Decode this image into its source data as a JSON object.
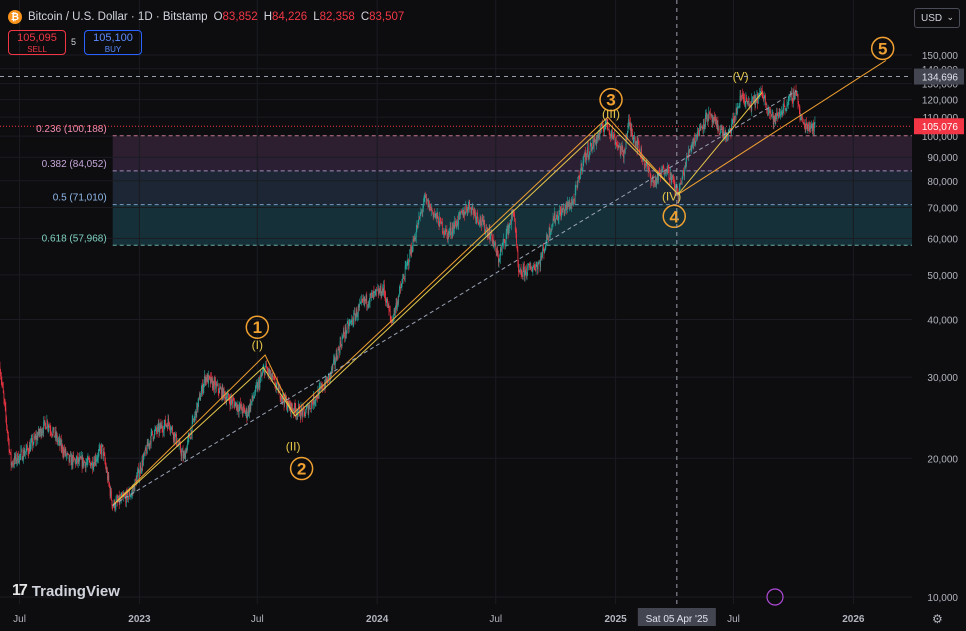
{
  "header": {
    "symbol_title": "Bitcoin / U.S. Dollar · 1D · Bitstamp",
    "open_label": "O",
    "open_value": "83,852",
    "high_label": "H",
    "high_value": "84,226",
    "low_label": "L",
    "low_value": "82,358",
    "close_label": "C",
    "close_value": "83,507"
  },
  "trade": {
    "sell_price": "105,095",
    "sell_label": "SELL",
    "spread": "5",
    "buy_price": "105,100",
    "buy_label": "BUY"
  },
  "currency": "USD",
  "brand": "TradingView",
  "colors": {
    "up": "#26a69a",
    "down": "#f23645",
    "wave": "#f0a030",
    "subwave": "#e6c84a",
    "background": "#0d0d10"
  },
  "chart_data": {
    "type": "candlestick",
    "ylim": [
      5000,
      160000
    ],
    "y_scale": "log",
    "y_ticks": [
      10000,
      20000,
      30000,
      40000,
      50000,
      60000,
      70000,
      80000,
      90000,
      100000,
      110000,
      120000,
      130000,
      140000,
      150000
    ],
    "y_tick_labels": [
      "10,000",
      "20,000",
      "30,000",
      "40,000",
      "50,000",
      "60,000",
      "70,000",
      "80,000",
      "90,000",
      "100,000",
      "110,000",
      "120,000",
      "130,000",
      "140,000",
      "150,000"
    ],
    "x_ticks": [
      {
        "date": "2022-07-01",
        "label": "Jul"
      },
      {
        "date": "2023-01-01",
        "label": "2023"
      },
      {
        "date": "2023-07-01",
        "label": "Jul"
      },
      {
        "date": "2024-01-01",
        "label": "2024"
      },
      {
        "date": "2024-07-01",
        "label": "Jul"
      },
      {
        "date": "2025-01-01",
        "label": "2025"
      },
      {
        "date": "2025-07-01",
        "label": "Jul"
      },
      {
        "date": "2026-01-01",
        "label": "2026"
      }
    ],
    "crosshair": {
      "date": "2025-04-05",
      "label": "Sat 05 Apr '25",
      "price": 134696,
      "price_label": "134,696"
    },
    "last_price": {
      "value": 105076,
      "label": "105,076"
    },
    "fib_levels": [
      {
        "ratio_label": "0.236 (100,188)",
        "value": 100188
      },
      {
        "ratio_label": "0.382 (84,052)",
        "value": 84052
      },
      {
        "ratio_label": "0.5 (71,010)",
        "value": 71010
      },
      {
        "ratio_label": "0.618 (57,968)",
        "value": 57968
      }
    ],
    "price_path": [
      [
        "2022-06-01",
        31500
      ],
      [
        "2022-06-18",
        19500
      ],
      [
        "2022-07-15",
        21000
      ],
      [
        "2022-08-12",
        24000
      ],
      [
        "2022-09-15",
        19800
      ],
      [
        "2022-10-20",
        19500
      ],
      [
        "2022-11-05",
        21000
      ],
      [
        "2022-11-21",
        15800
      ],
      [
        "2022-12-20",
        16800
      ],
      [
        "2023-01-20",
        22500
      ],
      [
        "2023-02-15",
        24000
      ],
      [
        "2023-03-10",
        20000
      ],
      [
        "2023-04-12",
        30000
      ],
      [
        "2023-05-20",
        26800
      ],
      [
        "2023-06-15",
        25000
      ],
      [
        "2023-07-13",
        31500
      ],
      [
        "2023-08-17",
        26000
      ],
      [
        "2023-09-11",
        25000
      ],
      [
        "2023-10-20",
        30000
      ],
      [
        "2023-11-10",
        37000
      ],
      [
        "2023-12-10",
        43500
      ],
      [
        "2024-01-11",
        46500
      ],
      [
        "2024-01-23",
        39500
      ],
      [
        "2024-02-15",
        52000
      ],
      [
        "2024-03-14",
        73000
      ],
      [
        "2024-04-18",
        61000
      ],
      [
        "2024-05-21",
        71000
      ],
      [
        "2024-06-25",
        60500
      ],
      [
        "2024-07-05",
        54000
      ],
      [
        "2024-07-29",
        69000
      ],
      [
        "2024-08-05",
        50000
      ],
      [
        "2024-09-06",
        53000
      ],
      [
        "2024-09-27",
        66000
      ],
      [
        "2024-10-29",
        72500
      ],
      [
        "2024-11-12",
        89000
      ],
      [
        "2024-12-05",
        100000
      ],
      [
        "2024-12-17",
        107000
      ],
      [
        "2025-01-13",
        91000
      ],
      [
        "2025-01-21",
        106500
      ],
      [
        "2025-02-28",
        79000
      ],
      [
        "2025-03-20",
        86000
      ],
      [
        "2025-04-07",
        74800
      ],
      [
        "2025-04-25",
        94500
      ],
      [
        "2025-05-22",
        111000
      ],
      [
        "2025-06-22",
        99000
      ],
      [
        "2025-07-14",
        123000
      ],
      [
        "2025-07-25",
        116000
      ],
      [
        "2025-08-14",
        124000
      ],
      [
        "2025-09-01",
        108000
      ],
      [
        "2025-10-06",
        125500
      ],
      [
        "2025-10-11",
        110000
      ],
      [
        "2025-10-17",
        106000
      ],
      [
        "2025-11-04",
        105076
      ]
    ],
    "wave_labels": [
      {
        "label": "1",
        "date": "2023-07-01",
        "value": 38500
      },
      {
        "label": "2",
        "date": "2023-09-07",
        "value": 19000
      },
      {
        "label": "3",
        "date": "2024-12-25",
        "value": 120000
      },
      {
        "label": "4",
        "date": "2025-04-01",
        "value": 67000
      },
      {
        "label": "5",
        "date": "2026-02-15",
        "value": 155000
      }
    ],
    "subwave_labels": [
      {
        "label": "(I)",
        "date": "2023-07-01",
        "value": 34500
      },
      {
        "label": "(II)",
        "date": "2023-08-25",
        "value": 20800
      },
      {
        "label": "(III)",
        "date": "2024-12-25",
        "value": 109500
      },
      {
        "label": "(IV)",
        "date": "2025-03-28",
        "value": 72500
      },
      {
        "label": "(V)",
        "date": "2025-07-12",
        "value": 132000
      }
    ],
    "wave_path_outer": [
      [
        "2022-11-21",
        15800
      ],
      [
        "2023-07-13",
        33500
      ],
      [
        "2023-08-25",
        25000
      ],
      [
        "2024-12-20",
        110000
      ],
      [
        "2025-04-07",
        74800
      ],
      [
        "2026-02-20",
        146000
      ]
    ],
    "wave_path_inner": [
      [
        "2022-11-21",
        15800
      ],
      [
        "2023-07-10",
        31500
      ],
      [
        "2023-08-28",
        24700
      ],
      [
        "2024-12-20",
        107000
      ],
      [
        "2025-04-07",
        74800
      ],
      [
        "2025-08-14",
        124500
      ]
    ],
    "channel_line": [
      [
        "2022-11-21",
        15800
      ],
      [
        "2023-07-13",
        33500
      ],
      [
        "2025-10-06",
        125500
      ]
    ]
  }
}
